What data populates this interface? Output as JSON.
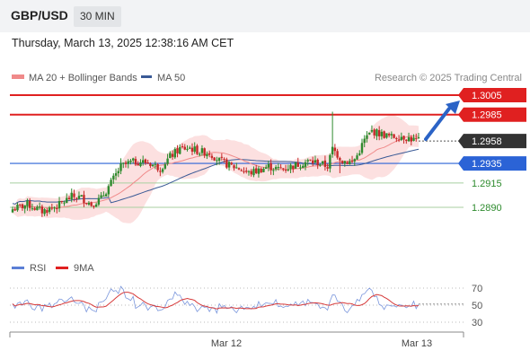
{
  "header": {
    "symbol": "GBP/USD",
    "timeframe": "30 MIN",
    "datetime": "Thursday, March 13, 2025 12:38:16 AM CET"
  },
  "chart_data": [
    {
      "type": "candlestick",
      "legend": [
        {
          "label": "MA 20 + Bollinger Bands",
          "color": "#f08a8a"
        },
        {
          "label": "MA 50",
          "color": "#3a5a96"
        }
      ],
      "watermark": "Research © 2025 Trading Central",
      "ylim": [
        1.2855,
        1.301
      ],
      "levels": [
        {
          "value": 1.3005,
          "label": "1.3005",
          "kind": "resistance",
          "color": "#e02020"
        },
        {
          "value": 1.2985,
          "label": "1.2985",
          "kind": "resistance",
          "color": "#e02020"
        },
        {
          "value": 1.2958,
          "label": "1.2958",
          "kind": "last",
          "color": "#333333"
        },
        {
          "value": 1.2935,
          "label": "1.2935",
          "kind": "pivot",
          "color": "#2b63d6"
        },
        {
          "value": 1.2915,
          "label": "1.2915",
          "kind": "support",
          "color": "#2e8b2e"
        },
        {
          "value": 1.289,
          "label": "1.2890",
          "kind": "support",
          "color": "#2e8b2e"
        }
      ],
      "arrow": {
        "from": 1.2958,
        "to": 1.3005,
        "direction": "up"
      },
      "x_ticks": [
        "Mar 12",
        "Mar 13"
      ],
      "candle_colors": {
        "up": "#2e8b2e",
        "down": "#c62828"
      },
      "ma20_color": "#f08a8a",
      "ma50_color": "#3a5a96",
      "band_color": "#fbd6d6",
      "note": "OHLC values per 30-min bar, oldest to newest"
    },
    {
      "type": "line",
      "legend": [
        {
          "label": "RSI",
          "color": "#5b7fd6"
        },
        {
          "label": "9MA",
          "color": "#e02020"
        }
      ],
      "ylim": [
        20,
        80
      ],
      "y_ticks": [
        70,
        50,
        30
      ]
    }
  ]
}
